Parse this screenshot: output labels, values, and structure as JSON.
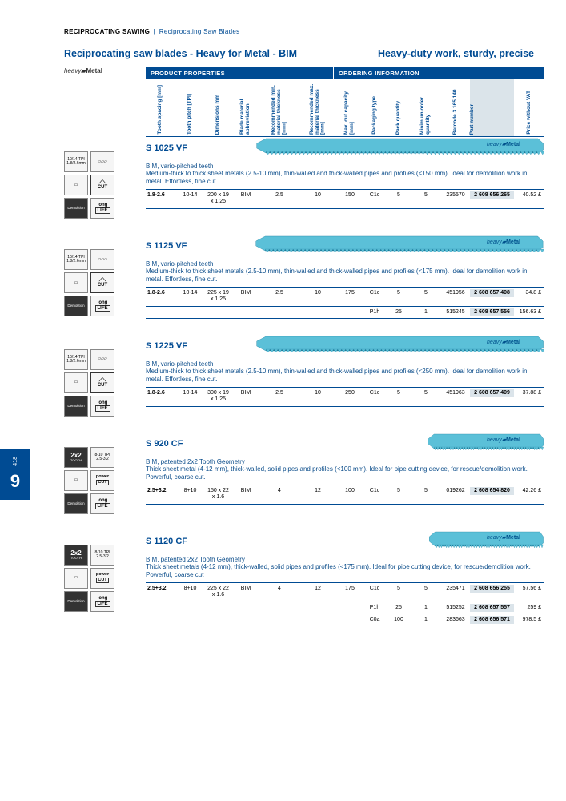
{
  "breadcrumb": {
    "main": "RECIPROCATING SAWING",
    "sub": "Reciprocating Saw Blades"
  },
  "title": {
    "left": "Reciprocating saw blades - Heavy for Metal - BIM",
    "right": "Heavy-duty work, sturdy, precise"
  },
  "logo": "heavy Metal",
  "header_bar": {
    "left": "PRODUCT PROPERTIES",
    "right": "ORDERING INFORMATION"
  },
  "cols": [
    "Tooth spacing [mm]",
    "Tooth pitch [TPI]",
    "Dimensions mm",
    "Blade material abbreviation",
    "Recommended min. material thickness [mm]",
    "Recommended max. material thickness [mm]",
    "Max. cut capacity [mm]",
    "Packaging type",
    "Pack quantity",
    "Minimum order quantity",
    "Barcode 3 165 140…",
    "Part number",
    "Price without VAT"
  ],
  "page_tab": {
    "page": "418",
    "chapter": "9"
  },
  "products": [
    {
      "name": "S 1025 VF",
      "sub1": "BIM, vario-pitched teeth",
      "sub2": "Medium-thick to thick sheet metals (2.5-10 mm), thin-walled and thick-walled pipes and profiles (<150 mm). Ideal for demolition work in metal. Effortless, fine cut",
      "badges": "vf",
      "rows": [
        {
          "ts": "1.8-2.6",
          "tpi": "10-14",
          "dim": "200 x 19 x 1.25",
          "mat": "BIM",
          "min": "2.5",
          "max": "10",
          "cap": "150",
          "pkg": "C1c",
          "pq": "5",
          "moq": "5",
          "bar": "235570",
          "pn": "2 608 656 265",
          "pr": "40.52 £"
        }
      ]
    },
    {
      "name": "S 1125 VF",
      "sub1": "BIM, vario-pitched teeth",
      "sub2": "Medium-thick to thick sheet metals (2.5-10 mm), thin-walled and thick-walled pipes and profiles (<175 mm). Ideal for demolition work in metal. Effortless, fine cut.",
      "badges": "vf",
      "rows": [
        {
          "ts": "1.8-2.6",
          "tpi": "10-14",
          "dim": "225 x 19 x 1.25",
          "mat": "BIM",
          "min": "2.5",
          "max": "10",
          "cap": "175",
          "pkg": "C1c",
          "pq": "5",
          "moq": "5",
          "bar": "451956",
          "pn": "2 608 657 408",
          "pr": "34.8 £"
        },
        {
          "ts": "",
          "tpi": "",
          "dim": "",
          "mat": "",
          "min": "",
          "max": "",
          "cap": "",
          "pkg": "P1h",
          "pq": "25",
          "moq": "1",
          "bar": "515245",
          "pn": "2 608 657 556",
          "pr": "156.63 £"
        }
      ]
    },
    {
      "name": "S 1225 VF",
      "sub1": "BIM, vario-pitched teeth",
      "sub2": "Medium-thick to thick sheet metals (2.5-10 mm), thin-walled and thick-walled pipes and profiles (<250 mm). Ideal for demolition work in metal. Effortless, fine cut.",
      "badges": "vf",
      "rows": [
        {
          "ts": "1.8-2.6",
          "tpi": "10-14",
          "dim": "300 x 19 x 1.25",
          "mat": "BIM",
          "min": "2.5",
          "max": "10",
          "cap": "250",
          "pkg": "C1c",
          "pq": "5",
          "moq": "5",
          "bar": "451963",
          "pn": "2 608 657 409",
          "pr": "37.88 £"
        }
      ]
    },
    {
      "name": "S 920 CF",
      "sub1": "BIM, patented 2x2 Tooth Geometry",
      "sub2": "Thick sheet metal (4-12 mm), thick-walled, solid pipes and profiles (<100 mm). Ideal for pipe cutting device, for rescue/demolition work. Powerful, coarse cut.",
      "badges": "cf",
      "rows": [
        {
          "ts": "2.5+3.2",
          "tpi": "8+10",
          "dim": "150 x 22 x 1.6",
          "mat": "BIM",
          "min": "4",
          "max": "12",
          "cap": "100",
          "pkg": "C1c",
          "pq": "5",
          "moq": "5",
          "bar": "019262",
          "pn": "2 608 654 820",
          "pr": "42.26 £"
        }
      ]
    },
    {
      "name": "S 1120 CF",
      "sub1": "BIM, patented 2x2 Tooth Geometry",
      "sub2": "Thick sheet metals (4-12 mm), thick-walled, solid pipes and profiles (<175 mm). Ideal for pipe cutting device, for rescue/demolition work. Powerful, coarse cut",
      "badges": "cf",
      "rows": [
        {
          "ts": "2.5+3.2",
          "tpi": "8+10",
          "dim": "225 x 22 x 1.6",
          "mat": "BIM",
          "min": "4",
          "max": "12",
          "cap": "175",
          "pkg": "C1c",
          "pq": "5",
          "moq": "5",
          "bar": "235471",
          "pn": "2 608 656 255",
          "pr": "57.56 £"
        },
        {
          "ts": "",
          "tpi": "",
          "dim": "",
          "mat": "",
          "min": "",
          "max": "",
          "cap": "",
          "pkg": "P1h",
          "pq": "25",
          "moq": "1",
          "bar": "515252",
          "pn": "2 608 657 557",
          "pr": "259 £"
        },
        {
          "ts": "",
          "tpi": "",
          "dim": "",
          "mat": "",
          "min": "",
          "max": "",
          "cap": "",
          "pkg": "C0a",
          "pq": "100",
          "moq": "1",
          "bar": "283663",
          "pn": "2 608 656 571",
          "pr": "978.5 £"
        }
      ]
    }
  ]
}
